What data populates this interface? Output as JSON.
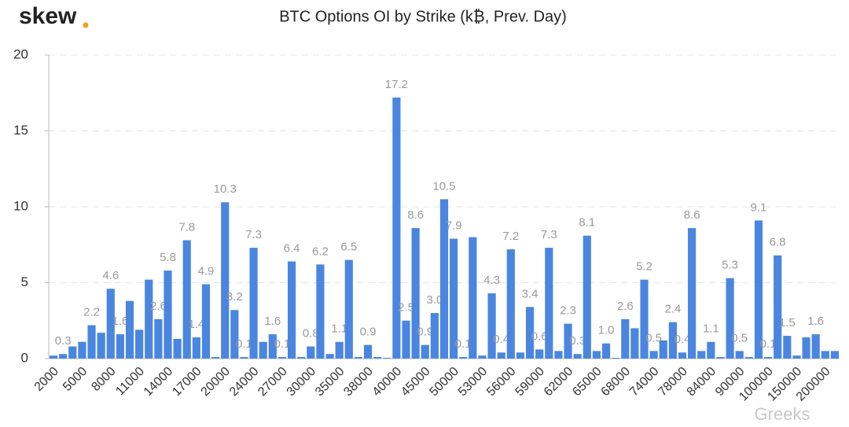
{
  "logo": "skew",
  "watermark": "Greeks",
  "chart_data": {
    "type": "bar",
    "title": "BTC Options OI by Strike (k₿, Prev. Day)",
    "color": "#4a86e0",
    "categories": [
      "2000",
      null,
      null,
      "5000",
      null,
      null,
      "8000",
      null,
      null,
      "11000",
      null,
      null,
      "14000",
      null,
      null,
      "17000",
      null,
      null,
      "20000",
      null,
      null,
      "24000",
      null,
      null,
      "27000",
      null,
      null,
      "30000",
      null,
      null,
      "35000",
      null,
      null,
      "38000",
      null,
      null,
      "40000",
      null,
      null,
      "45000",
      null,
      null,
      "50000",
      null,
      null,
      "53000",
      null,
      null,
      "56000",
      null,
      null,
      "59000",
      null,
      null,
      "62000",
      null,
      null,
      "65000",
      null,
      null,
      "68000",
      null,
      null,
      "74000",
      null,
      null,
      "78000",
      null,
      null,
      "84000",
      null,
      null,
      "90000",
      null,
      null,
      "100000",
      null,
      null,
      "150000",
      null,
      null,
      "200000",
      null
    ],
    "values": [
      0.2,
      0.3,
      0.8,
      1.1,
      2.2,
      1.7,
      4.6,
      1.6,
      3.8,
      1.9,
      5.2,
      2.6,
      5.8,
      1.3,
      7.8,
      1.4,
      4.9,
      0.1,
      10.3,
      3.2,
      0.1,
      7.3,
      1.1,
      1.6,
      0.1,
      6.4,
      0.1,
      0.8,
      6.2,
      0.3,
      1.1,
      6.5,
      0.1,
      0.9,
      0.1,
      0.05,
      17.2,
      2.5,
      8.6,
      0.9,
      3.0,
      10.5,
      7.9,
      0.1,
      8.0,
      0.2,
      4.3,
      0.4,
      7.2,
      0.4,
      3.4,
      0.6,
      7.3,
      0.5,
      2.3,
      0.3,
      8.1,
      0.5,
      1.0,
      0.05,
      2.6,
      2.0,
      5.2,
      0.5,
      1.2,
      2.4,
      0.4,
      8.6,
      0.5,
      1.1,
      0.1,
      5.3,
      0.5,
      0.1,
      9.1,
      0.1,
      6.8,
      1.5,
      0.2,
      1.4,
      1.6,
      0.5,
      0.5
    ],
    "value_labels": [
      null,
      "0.3",
      null,
      null,
      "2.2",
      null,
      "4.6",
      "1.6",
      null,
      null,
      null,
      "2.6",
      "5.8",
      null,
      "7.8",
      "1.4",
      "4.9",
      null,
      "10.3",
      "3.2",
      "0.1",
      "7.3",
      null,
      "1.6",
      "0.1",
      "6.4",
      null,
      "0.8",
      "6.2",
      null,
      "1.1",
      "6.5",
      null,
      "0.9",
      null,
      null,
      "17.2",
      "2.5",
      "8.6",
      "0.9",
      "3.0",
      "10.5",
      "7.9",
      "0.1",
      null,
      null,
      "4.3",
      "0.4",
      "7.2",
      null,
      "3.4",
      "0.6",
      "7.3",
      null,
      "2.3",
      "0.3",
      "8.1",
      null,
      "1.0",
      null,
      "2.6",
      null,
      "5.2",
      "0.5",
      null,
      "2.4",
      "0.4",
      "8.6",
      null,
      "1.1",
      null,
      "5.3",
      "0.5",
      null,
      "9.1",
      "0.1",
      "6.8",
      "1.5",
      null,
      null,
      "1.6",
      null,
      null
    ],
    "ylim": [
      0,
      20
    ],
    "yticks": [
      0,
      5,
      10,
      15,
      20
    ],
    "grid": true
  }
}
